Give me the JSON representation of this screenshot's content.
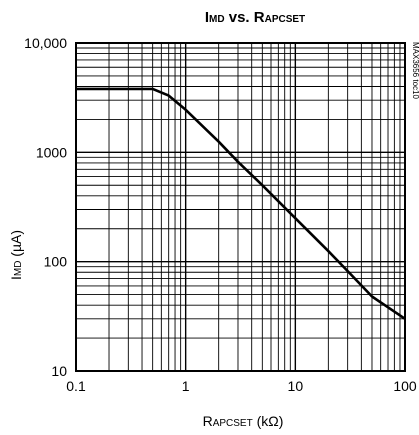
{
  "chart_data": {
    "type": "line",
    "title": {
      "main": "I",
      "sub": "MD",
      "mid": " vs. R",
      "sub2": "APCSET"
    },
    "xlabel": {
      "main": "R",
      "sub": "APCSET",
      "unit": " (kΩ)"
    },
    "ylabel": {
      "main": "I",
      "sub": "MD",
      "unit": " (µA)"
    },
    "x_scale": "log",
    "y_scale": "log",
    "xlim": [
      0.1,
      100
    ],
    "ylim": [
      10,
      10000
    ],
    "grid": true,
    "x_tick_labels": [
      "0.1",
      "1",
      "10",
      "100"
    ],
    "x_tick_values": [
      0.1,
      1,
      10,
      100
    ],
    "y_tick_labels": [
      "10",
      "100",
      "1000",
      "10,000"
    ],
    "y_tick_values": [
      10,
      100,
      1000,
      10000
    ],
    "figure_id": "MAX3656 toc10",
    "series": [
      {
        "x": [
          0.1,
          0.5,
          0.7,
          1.0,
          2.0,
          3.0,
          5.0,
          10,
          20,
          30,
          50,
          100
        ],
        "y": [
          3800,
          3800,
          3300,
          2450,
          1250,
          820,
          500,
          250,
          125,
          82,
          48,
          30
        ]
      }
    ]
  }
}
